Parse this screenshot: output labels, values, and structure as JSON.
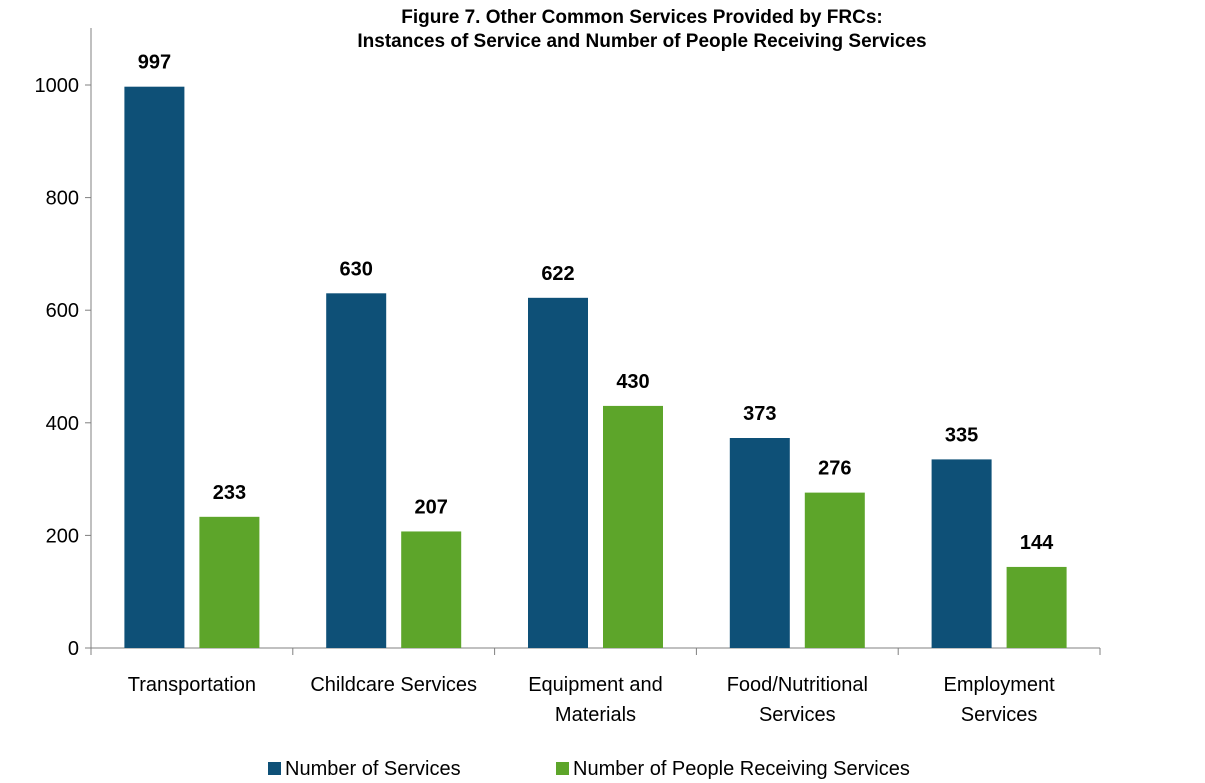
{
  "chart_data": {
    "type": "bar",
    "title": [
      "Figure 7. Other Common Services Provided by FRCs:",
      "Instances of Service and Number of People Receiving Services"
    ],
    "categories": [
      [
        "Transportation"
      ],
      [
        "Childcare Services"
      ],
      [
        "Equipment and",
        "Materials"
      ],
      [
        "Food/Nutritional",
        "Services"
      ],
      [
        "Employment",
        "Services"
      ]
    ],
    "series": [
      {
        "name": "Number of Services",
        "color": "#0E5077",
        "values": [
          997,
          630,
          622,
          373,
          335
        ]
      },
      {
        "name": "Number of People Receiving Services",
        "color": "#5DA52A",
        "values": [
          233,
          207,
          430,
          276,
          144
        ]
      }
    ],
    "xlabel": "",
    "ylabel": "",
    "ylim": [
      0,
      1000
    ],
    "yticks": [
      0,
      200,
      400,
      600,
      800,
      1000
    ],
    "grid": false,
    "legend": "bottom"
  }
}
